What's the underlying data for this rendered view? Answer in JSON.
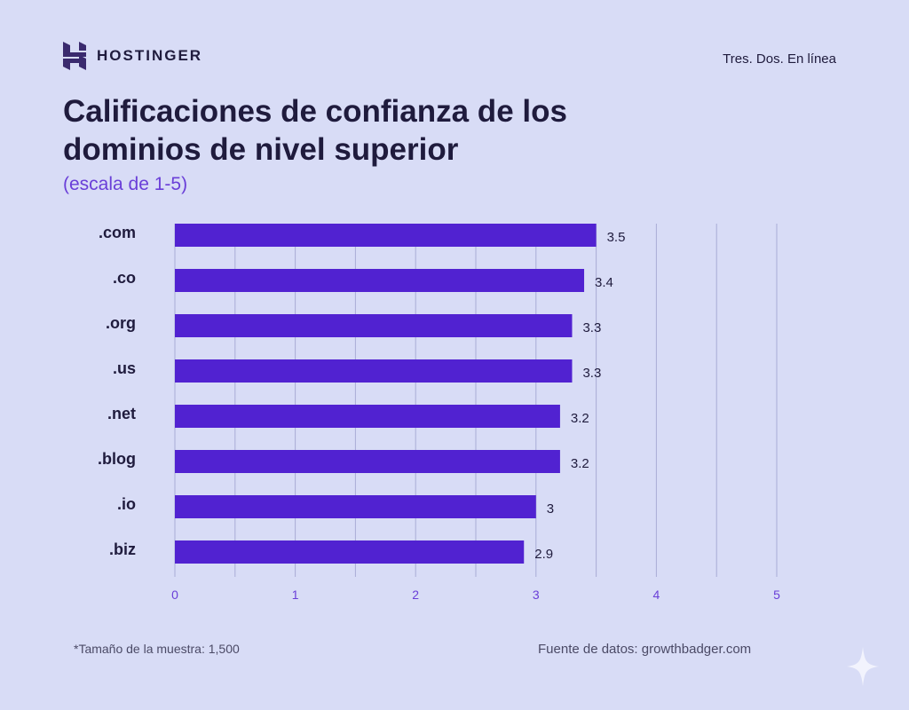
{
  "brand": {
    "name": "HOSTINGER",
    "tagline": "Tres. Dos. En línea"
  },
  "title": "Calificaciones de confianza de los dominios de nivel superior",
  "subtitle": "(escala de 1-5)",
  "footnote": "*Tamaño de la muestra: 1,500",
  "source": "Fuente de datos: growthbadger.com",
  "colors": {
    "bar": "#5122d1",
    "background": "#d8dcf6",
    "axis_tick": "#6a3fd8",
    "grid": "#a9acd6"
  },
  "chart_data": {
    "type": "bar",
    "orientation": "horizontal",
    "categories": [
      ".com",
      ".co",
      ".org",
      ".us",
      ".net",
      ".blog",
      ".io",
      ".biz"
    ],
    "values": [
      3.5,
      3.4,
      3.3,
      3.3,
      3.2,
      3.2,
      3,
      2.9
    ],
    "data_labels": [
      "3.5",
      "3.4",
      "3.3",
      "3.3",
      "3.2",
      "3.2",
      "3",
      "2.9"
    ],
    "xlim": [
      0,
      5
    ],
    "x_ticks": [
      "0",
      "1",
      "2",
      "3",
      "4",
      "5"
    ],
    "grid": true,
    "title": "Calificaciones de confianza de los dominios de nivel superior",
    "xlabel": "",
    "ylabel": ""
  }
}
